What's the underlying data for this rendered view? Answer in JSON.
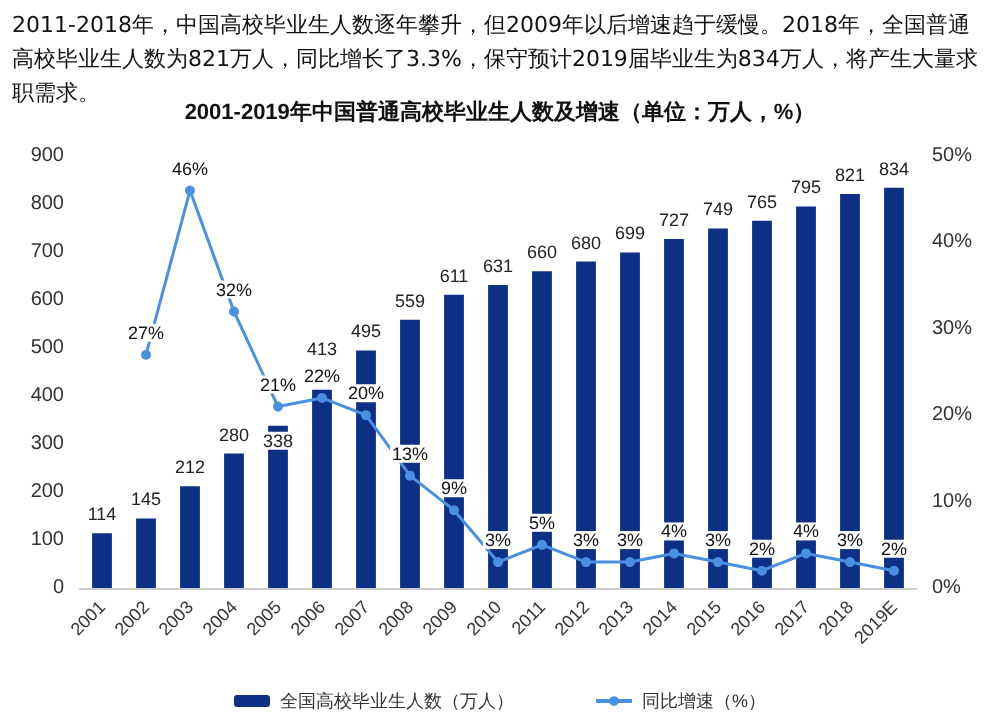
{
  "chart_data": {
    "type": "bar",
    "title": "2001-2019年中国普通高校毕业生人数及增速（单位：万人，%）",
    "annotations": [
      "2011-2018年，中国高校毕业生人数逐年攀升，但2009年以后增速趋于缓慢。2018年，全国普通高校毕业生人数为821万人，同比增长了3.3%，保守预计2019届毕业生为834万人，将产生大量求职需求。"
    ],
    "categories": [
      "2001",
      "2002",
      "2003",
      "2004",
      "2005",
      "2006",
      "2007",
      "2008",
      "2009",
      "2010",
      "2011",
      "2012",
      "2013",
      "2014",
      "2015",
      "2016",
      "2017",
      "2018",
      "2019E"
    ],
    "series": [
      {
        "name": "全国高校毕业生人数（万人）",
        "type": "bar",
        "color": "#0d2f86",
        "values": [
          114,
          145,
          212,
          280,
          338,
          413,
          495,
          559,
          611,
          631,
          660,
          680,
          699,
          727,
          749,
          765,
          795,
          821,
          834
        ]
      },
      {
        "name": "同比增速（%）",
        "type": "line",
        "axis": "y2",
        "color": "#4a90e2",
        "values": [
          null,
          27,
          46,
          32,
          21,
          22,
          20,
          13,
          9,
          3,
          5,
          3,
          3,
          4,
          3,
          2,
          4,
          3,
          2
        ],
        "value_labels": [
          null,
          "27%",
          "46%",
          "32%",
          "21%",
          "22%",
          "20%",
          "13%",
          "9%",
          "3%",
          "5%",
          "3%",
          "3%",
          "4%",
          "3%",
          "2%",
          "4%",
          "3%",
          "2%"
        ]
      }
    ],
    "data_labels": true,
    "ylim": [
      0,
      900
    ],
    "yticks": [
      0,
      100,
      200,
      300,
      400,
      500,
      600,
      700,
      800,
      900
    ],
    "y2lim": [
      0,
      50
    ],
    "y2ticks": [
      {
        "value": 0,
        "label": "0%"
      },
      {
        "value": 10,
        "label": "10%"
      },
      {
        "value": 20,
        "label": "20%"
      },
      {
        "value": 30,
        "label": "30%"
      },
      {
        "value": 40,
        "label": "40%"
      },
      {
        "value": 50,
        "label": "50%"
      }
    ],
    "grid": false,
    "legend": "bottom",
    "marker": "circle",
    "line_style": "solid"
  }
}
